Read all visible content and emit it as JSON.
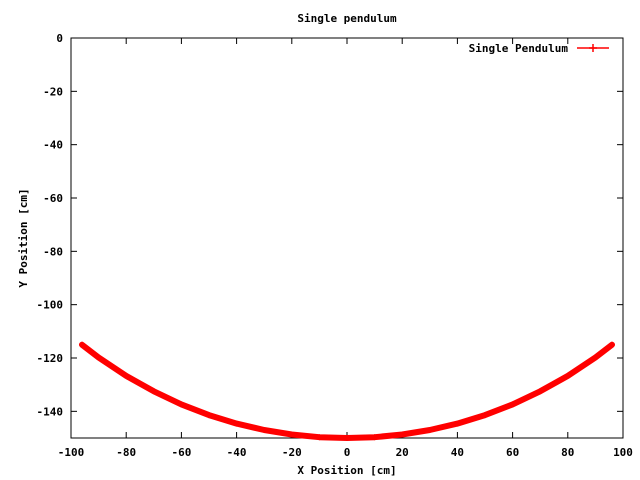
{
  "chart_data": {
    "type": "line",
    "title": "Single pendulum",
    "xlabel": "X Position [cm]",
    "ylabel": "Y Position [cm]",
    "xlim": [
      -100,
      100
    ],
    "ylim": [
      -150,
      0
    ],
    "xticks": [
      -100,
      -80,
      -60,
      -40,
      -20,
      0,
      20,
      40,
      60,
      80,
      100
    ],
    "yticks": [
      0,
      -20,
      -40,
      -60,
      -80,
      -100,
      -120,
      -140
    ],
    "xtick_labels": [
      "-100",
      "-80",
      "-60",
      "-40",
      "-20",
      "0",
      "20",
      "40",
      "60",
      "80",
      "100"
    ],
    "ytick_labels": [
      "0",
      "-20",
      "-40",
      "-60",
      "-80",
      "-100",
      "-120",
      "-140"
    ],
    "grid": false,
    "legend_position": "top-right",
    "series": [
      {
        "name": "Single Pendulum",
        "color": "#ff0000",
        "marker": "plus",
        "x": [
          -96,
          -90,
          -80,
          -70,
          -60,
          -50,
          -40,
          -30,
          -20,
          -10,
          0,
          10,
          20,
          30,
          40,
          50,
          60,
          70,
          80,
          90,
          96
        ],
        "y": [
          -115,
          -119.8,
          -126.7,
          -132.5,
          -137.4,
          -141.4,
          -144.6,
          -147,
          -148.7,
          -149.7,
          -150,
          -149.7,
          -148.7,
          -147,
          -144.6,
          -141.4,
          -137.4,
          -132.5,
          -126.7,
          -119.8,
          -115
        ]
      }
    ]
  }
}
